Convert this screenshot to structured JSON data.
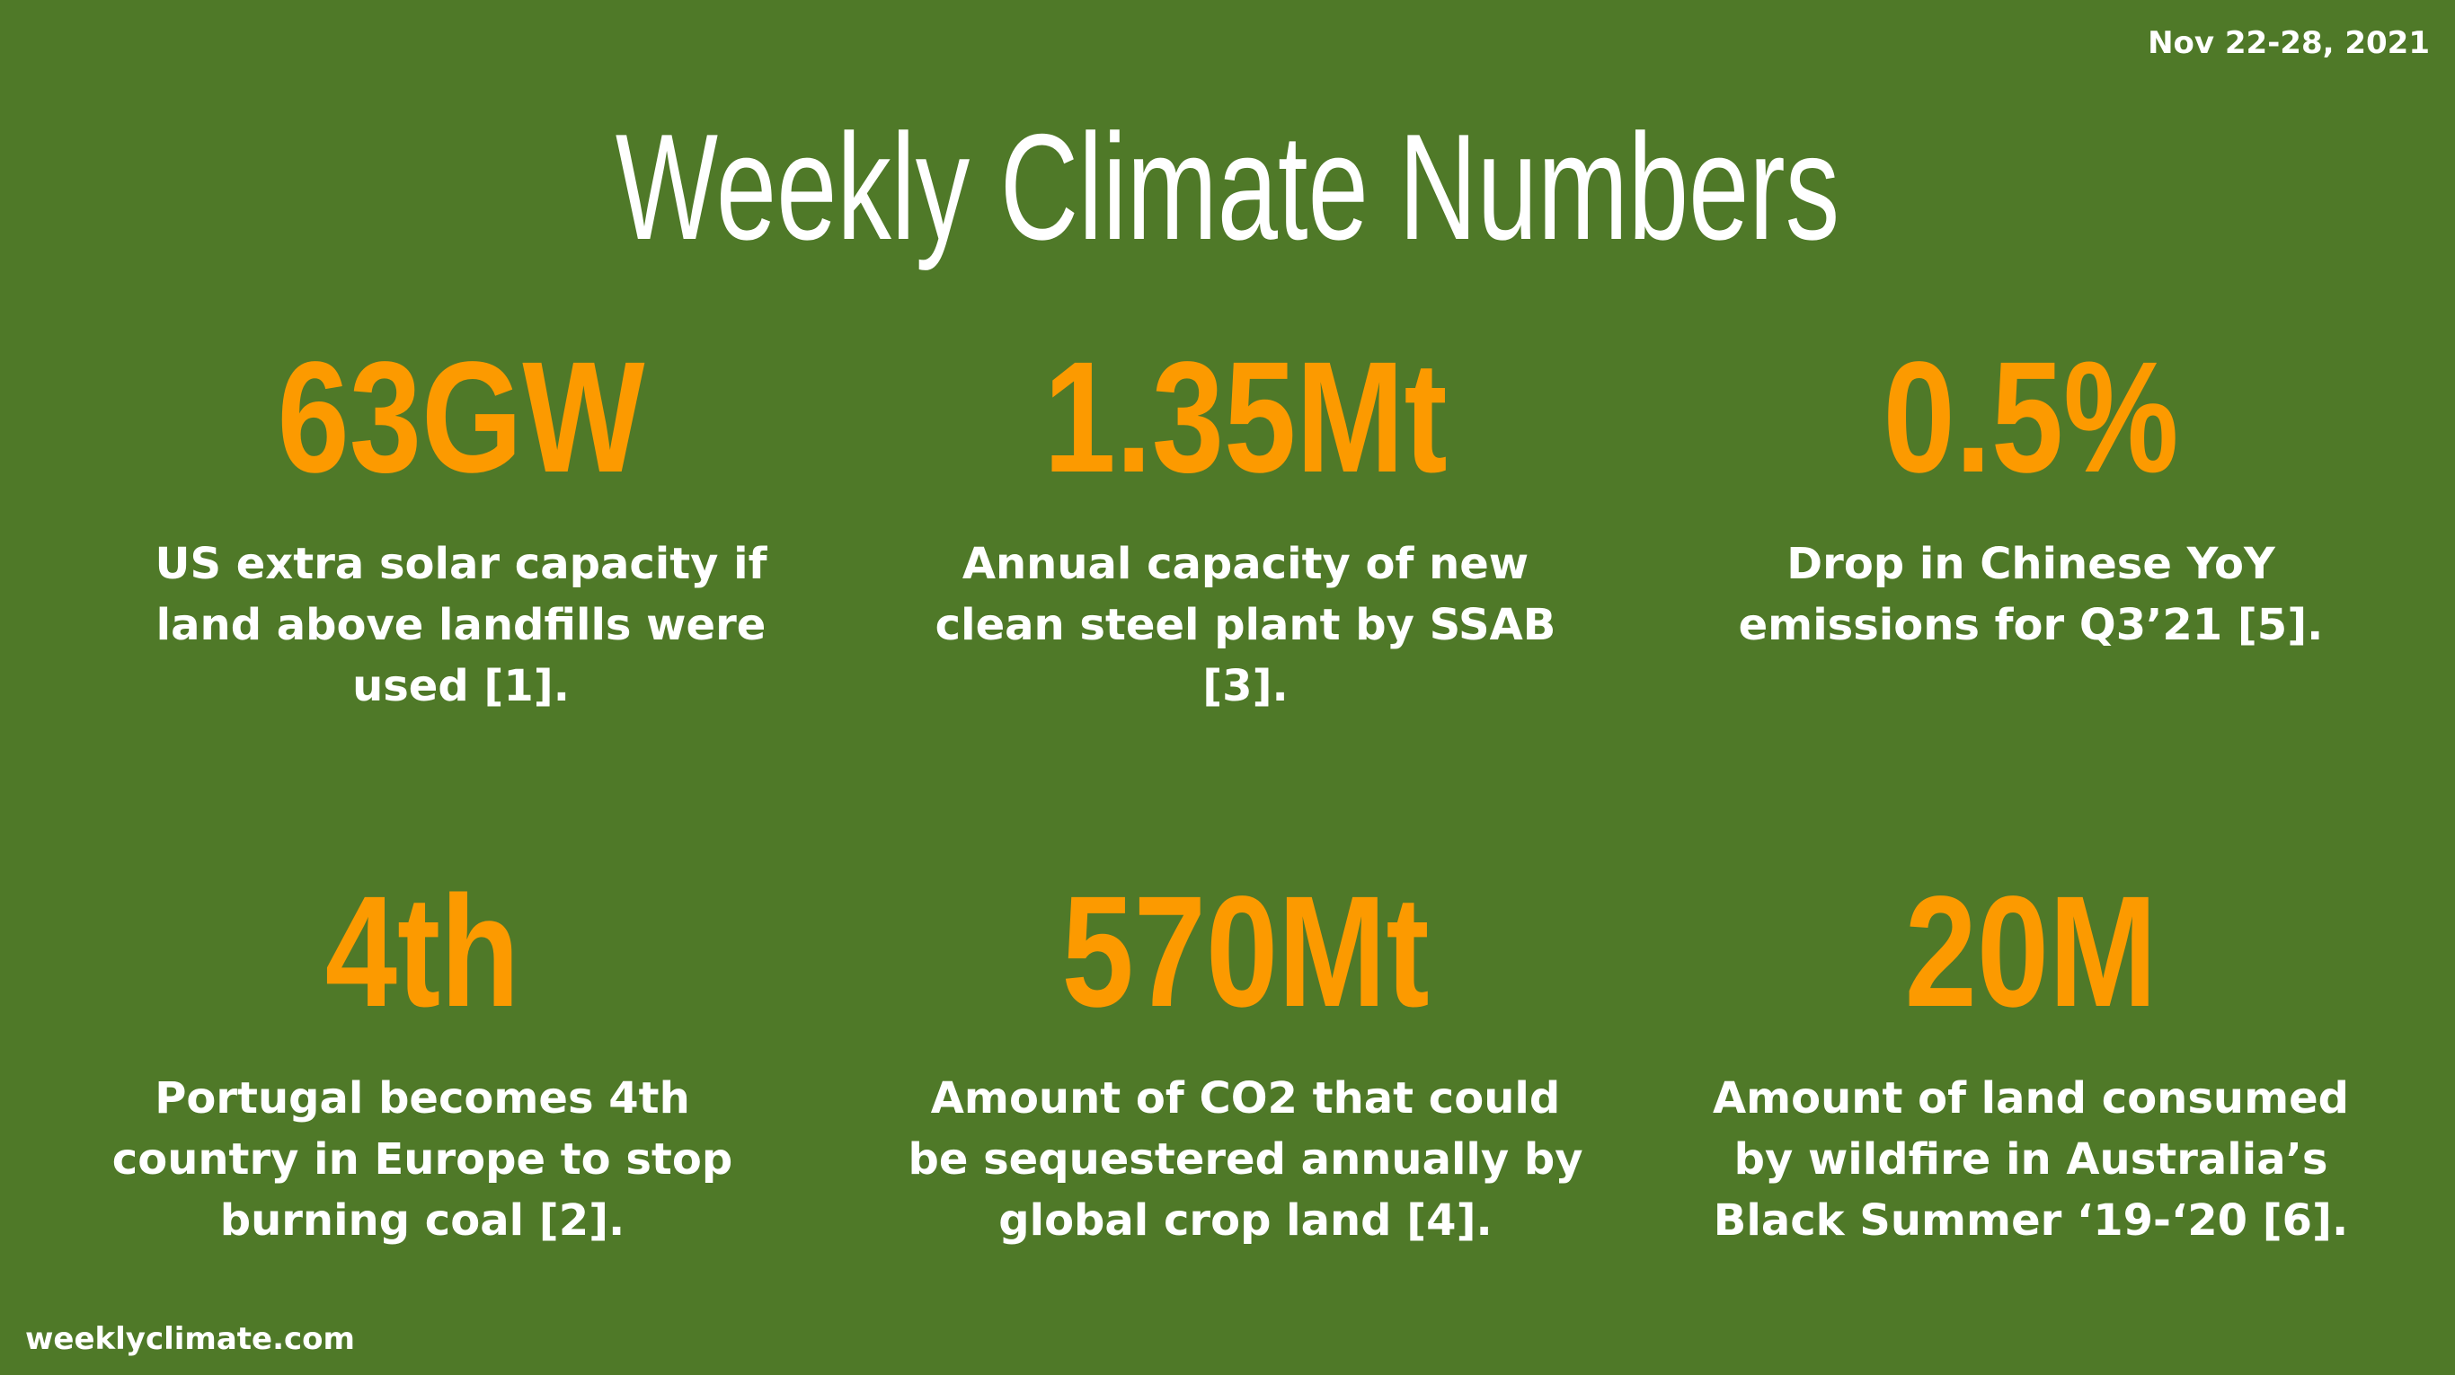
{
  "header": {
    "date": "Nov 22-28, 2021",
    "title": "Weekly Climate Numbers"
  },
  "stats": [
    {
      "number": "63GW",
      "description": "US extra solar capacity if land above landfills were used [1]."
    },
    {
      "number": "1.35Mt",
      "description": "Annual capacity of new clean steel plant by SSAB [3]."
    },
    {
      "number": "0.5%",
      "description": "Drop in Chinese YoY emissions for Q3’21 [5]."
    },
    {
      "number": "4th",
      "description": "Portugal becomes 4th country in Europe to stop burning coal [2]."
    },
    {
      "number": "570Mt",
      "description": "Amount of CO2 that could be sequestered annually by global crop land [4]."
    },
    {
      "number": "20M",
      "description": "Amount of land consumed by wildfire in Australia’s Black Summer ‘19-‘20 [6]."
    }
  ],
  "footer": {
    "site": "weeklyclimate.com"
  },
  "colors": {
    "background": "#4f7928",
    "accent": "#fc9a00",
    "text": "#ffffff"
  }
}
